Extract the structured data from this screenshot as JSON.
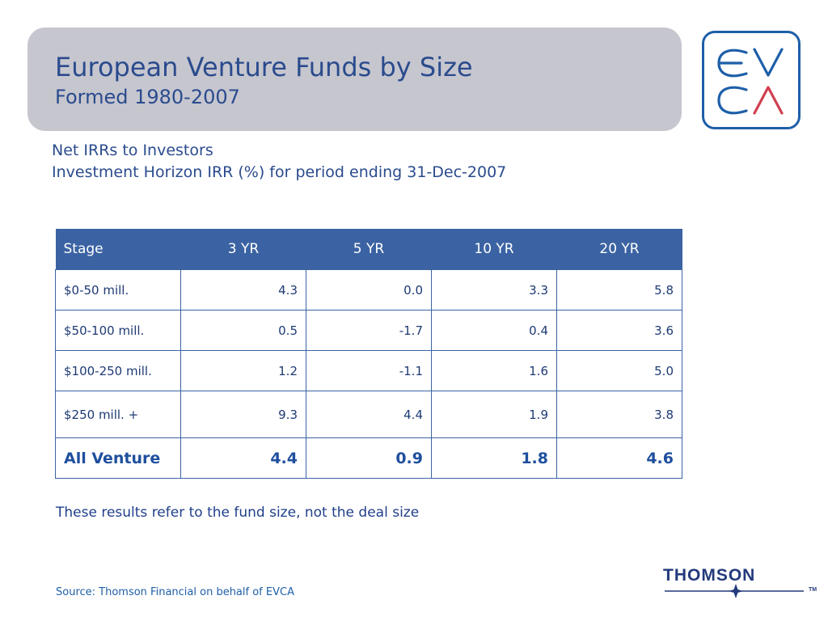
{
  "header": {
    "title": "European Venture Funds by Size",
    "subtitle": "Formed 1980-2007",
    "logo_text": "EVCA"
  },
  "intro": {
    "line1": "Net IRRs to Investors",
    "line2": "Investment Horizon IRR (%) for period ending 31-Dec-2007"
  },
  "table": {
    "columns": [
      "Stage",
      "3 YR",
      "5 YR",
      "10 YR",
      "20 YR"
    ],
    "rows": [
      {
        "label": "$0-50 mill.",
        "values": [
          "4.3",
          "0.0",
          "3.3",
          "5.8"
        ]
      },
      {
        "label": "$50-100 mill.",
        "values": [
          "0.5",
          "-1.7",
          "0.4",
          "3.6"
        ]
      },
      {
        "label": "$100-250 mill.",
        "values": [
          "1.2",
          "-1.1",
          "1.6",
          "5.0"
        ]
      },
      {
        "label": "$250 mill. +",
        "values": [
          "9.3",
          "4.4",
          "1.9",
          "3.8"
        ]
      }
    ],
    "total": {
      "label": "All Venture",
      "values": [
        "4.4",
        "0.9",
        "1.8",
        "4.6"
      ]
    }
  },
  "note": "These results refer to the fund size, not the deal size",
  "footer": {
    "source": "Source: Thomson Financial on behalf of EVCA",
    "brand": "THOMSON",
    "trademark": "TM"
  },
  "colors": {
    "title_text": "#2a4b8d",
    "title_box": "#c6c6cf",
    "table_header": "#3b63a3",
    "logo_blue": "#1e5fa8",
    "logo_red": "#d0404f"
  }
}
